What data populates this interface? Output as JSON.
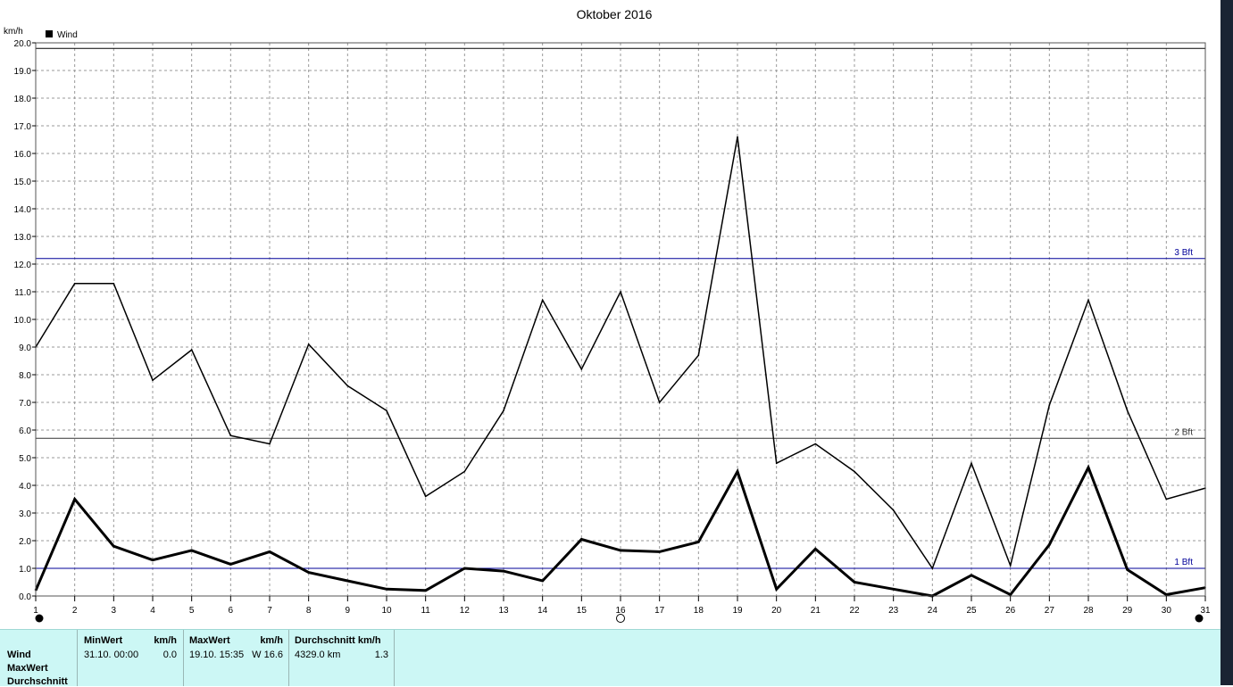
{
  "chart_data": {
    "type": "line",
    "title": "Oktober 2016",
    "ylabel": "km/h",
    "legend": {
      "label": "Wind",
      "placement": "top-left"
    },
    "ylim": [
      0,
      20
    ],
    "yticks": [
      "0.0",
      "1.0",
      "2.0",
      "3.0",
      "4.0",
      "5.0",
      "6.0",
      "7.0",
      "8.0",
      "9.0",
      "10.0",
      "11.0",
      "12.0",
      "13.0",
      "14.0",
      "15.0",
      "16.0",
      "17.0",
      "18.0",
      "19.0",
      "20.0"
    ],
    "x": [
      1,
      2,
      3,
      4,
      5,
      6,
      7,
      8,
      9,
      10,
      11,
      12,
      13,
      14,
      15,
      16,
      17,
      18,
      19,
      20,
      21,
      22,
      23,
      24,
      25,
      26,
      27,
      28,
      29,
      30,
      31
    ],
    "grid": true,
    "series": [
      {
        "name": "MaxWert",
        "width": 1.5,
        "values": [
          9.0,
          11.3,
          11.3,
          7.8,
          8.9,
          5.8,
          5.5,
          9.1,
          7.6,
          6.7,
          3.6,
          4.5,
          6.7,
          10.7,
          8.2,
          11.0,
          7.0,
          8.7,
          16.6,
          4.8,
          5.5,
          4.5,
          3.1,
          1.0,
          4.8,
          1.1,
          6.9,
          10.7,
          6.7,
          3.5,
          3.9
        ]
      },
      {
        "name": "Durchschnitt",
        "width": 3,
        "values": [
          0.2,
          3.5,
          1.8,
          1.3,
          1.65,
          1.15,
          1.6,
          0.85,
          0.55,
          0.25,
          0.2,
          1.0,
          0.9,
          0.55,
          2.05,
          1.65,
          1.6,
          1.95,
          4.5,
          0.25,
          1.7,
          0.5,
          0.25,
          0.0,
          0.75,
          0.05,
          1.85,
          4.65,
          0.95,
          0.05,
          0.3
        ]
      }
    ],
    "reference_lines": [
      {
        "label": "3 Bft",
        "value": 12.2,
        "color": "#000099"
      },
      {
        "label": "2 Bft",
        "value": 5.7,
        "color": "#333333"
      },
      {
        "label": "1 Bft",
        "value": 1.0,
        "color": "#000099"
      },
      {
        "label": "",
        "value": 19.8,
        "color": "#000000"
      }
    ],
    "moon_markers": [
      {
        "day": 1,
        "phase": "new"
      },
      {
        "day": 16,
        "phase": "full"
      },
      {
        "day": 31,
        "phase": "new"
      }
    ]
  },
  "stats": {
    "row_labels": [
      "Wind",
      "MaxWert",
      "Durchschnitt"
    ],
    "min": {
      "header": "MinWert",
      "unit": "km/h",
      "date": "31.10.  00:00",
      "value": "0.0"
    },
    "max": {
      "header": "MaxWert",
      "unit": "km/h",
      "date": "19.10.  15:35",
      "value": "W 16.6"
    },
    "avg": {
      "header": "Durchschnitt km/h",
      "distance": "4329.0 km",
      "value": "1.3"
    }
  }
}
